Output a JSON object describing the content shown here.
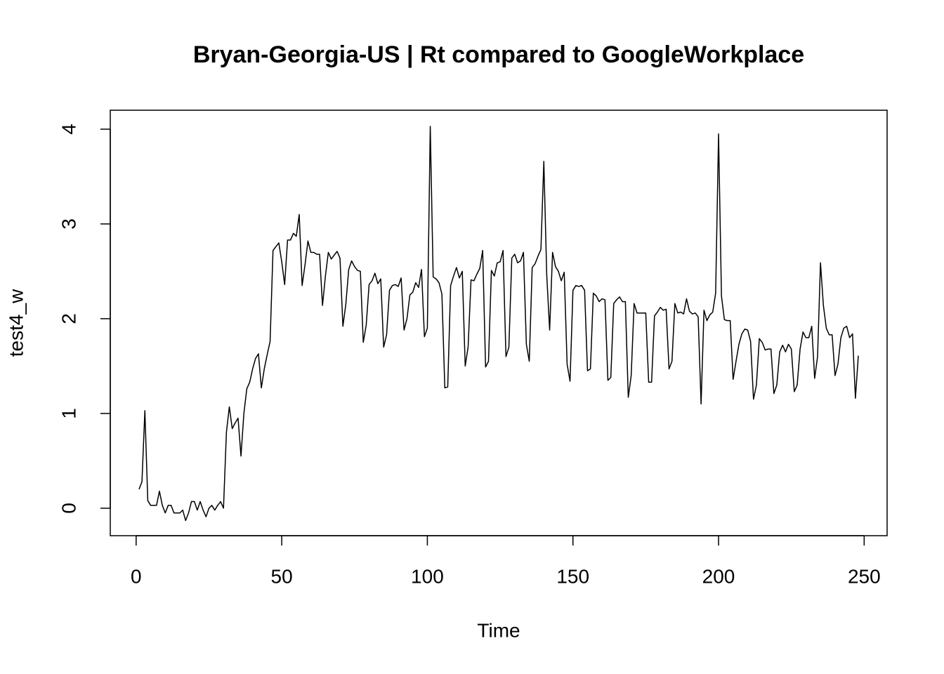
{
  "chart_data": {
    "type": "line",
    "title": "Bryan-Georgia-US | Rt compared to GoogleWorkplace",
    "xlabel": "Time",
    "ylabel": "test4_w",
    "x": [
      1,
      2,
      3,
      4,
      5,
      6,
      7,
      8,
      9,
      10,
      11,
      12,
      13,
      14,
      15,
      16,
      17,
      18,
      19,
      20,
      21,
      22,
      23,
      24,
      25,
      26,
      27,
      28,
      29,
      30,
      31,
      32,
      33,
      34,
      35,
      36,
      37,
      38,
      39,
      40,
      41,
      42,
      43,
      44,
      45,
      46,
      47,
      48,
      49,
      50,
      51,
      52,
      53,
      54,
      55,
      56,
      57,
      58,
      59,
      60,
      61,
      62,
      63,
      64,
      65,
      66,
      67,
      68,
      69,
      70,
      71,
      72,
      73,
      74,
      75,
      76,
      77,
      78,
      79,
      80,
      81,
      82,
      83,
      84,
      85,
      86,
      87,
      88,
      89,
      90,
      91,
      92,
      93,
      94,
      95,
      96,
      97,
      98,
      99,
      100,
      101,
      102,
      103,
      104,
      105,
      106,
      107,
      108,
      109,
      110,
      111,
      112,
      113,
      114,
      115,
      116,
      117,
      118,
      119,
      120,
      121,
      122,
      123,
      124,
      125,
      126,
      127,
      128,
      129,
      130,
      131,
      132,
      133,
      134,
      135,
      136,
      137,
      138,
      139,
      140,
      141,
      142,
      143,
      144,
      145,
      146,
      147,
      148,
      149,
      150,
      151,
      152,
      153,
      154,
      155,
      156,
      157,
      158,
      159,
      160,
      161,
      162,
      163,
      164,
      165,
      166,
      167,
      168,
      169,
      170,
      171,
      172,
      173,
      174,
      175,
      176,
      177,
      178,
      179,
      180,
      181,
      182,
      183,
      184,
      185,
      186,
      187,
      188,
      189,
      190,
      191,
      192,
      193,
      194,
      195,
      196,
      197,
      198,
      199,
      200,
      201,
      202,
      203,
      204,
      205,
      206,
      207,
      208,
      209,
      210,
      211,
      212,
      213,
      214,
      215,
      216,
      217,
      218,
      219,
      220,
      221,
      222,
      223,
      224,
      225,
      226,
      227,
      228,
      229,
      230,
      231,
      232,
      233,
      234,
      235,
      236,
      237,
      238,
      239,
      240,
      241,
      242,
      243,
      244,
      245,
      246,
      247,
      248
    ],
    "series": [
      {
        "name": "test4_w",
        "color": "#000000",
        "values": [
          0.2,
          0.28,
          1.03,
          0.08,
          0.03,
          0.03,
          0.03,
          0.18,
          0.03,
          -0.05,
          0.03,
          0.03,
          -0.05,
          -0.05,
          -0.05,
          -0.02,
          -0.13,
          -0.05,
          0.07,
          0.07,
          -0.02,
          0.07,
          -0.02,
          -0.09,
          0.0,
          0.03,
          -0.02,
          0.03,
          0.07,
          0.0,
          0.8,
          1.07,
          0.84,
          0.9,
          0.95,
          0.55,
          1.0,
          1.26,
          1.33,
          1.47,
          1.58,
          1.63,
          1.27,
          1.47,
          1.62,
          1.76,
          2.72,
          2.76,
          2.8,
          2.6,
          2.36,
          2.83,
          2.83,
          2.9,
          2.87,
          3.1,
          2.35,
          2.57,
          2.82,
          2.7,
          2.7,
          2.68,
          2.68,
          2.14,
          2.45,
          2.7,
          2.63,
          2.67,
          2.71,
          2.64,
          1.92,
          2.15,
          2.52,
          2.61,
          2.55,
          2.51,
          2.5,
          1.75,
          1.93,
          2.36,
          2.4,
          2.48,
          2.37,
          2.42,
          1.7,
          1.83,
          2.3,
          2.35,
          2.36,
          2.34,
          2.43,
          1.88,
          2.0,
          2.25,
          2.28,
          2.38,
          2.33,
          2.52,
          1.81,
          1.9,
          4.03,
          2.44,
          2.42,
          2.38,
          2.26,
          1.27,
          1.28,
          2.35,
          2.45,
          2.54,
          2.43,
          2.5,
          1.5,
          1.7,
          2.41,
          2.4,
          2.47,
          2.53,
          2.72,
          1.49,
          1.55,
          2.51,
          2.45,
          2.59,
          2.6,
          2.72,
          1.6,
          1.7,
          2.64,
          2.68,
          2.59,
          2.61,
          2.7,
          1.73,
          1.55,
          2.54,
          2.58,
          2.66,
          2.73,
          3.66,
          2.46,
          1.88,
          2.7,
          2.55,
          2.5,
          2.4,
          2.49,
          1.52,
          1.34,
          2.3,
          2.35,
          2.34,
          2.35,
          2.3,
          1.45,
          1.47,
          2.27,
          2.24,
          2.18,
          2.21,
          2.2,
          1.35,
          1.38,
          2.16,
          2.2,
          2.23,
          2.18,
          2.18,
          1.17,
          1.4,
          2.16,
          2.06,
          2.06,
          2.06,
          2.06,
          1.33,
          1.33,
          2.03,
          2.07,
          2.12,
          2.09,
          2.1,
          1.47,
          1.55,
          2.16,
          2.06,
          2.07,
          2.05,
          2.21,
          2.08,
          2.05,
          2.06,
          2.02,
          1.1,
          2.09,
          1.98,
          2.04,
          2.07,
          2.27,
          3.95,
          2.24,
          1.99,
          1.98,
          1.98,
          1.36,
          1.55,
          1.73,
          1.84,
          1.89,
          1.88,
          1.76,
          1.15,
          1.3,
          1.79,
          1.75,
          1.67,
          1.68,
          1.68,
          1.21,
          1.3,
          1.65,
          1.72,
          1.65,
          1.73,
          1.68,
          1.23,
          1.3,
          1.68,
          1.86,
          1.8,
          1.8,
          1.92,
          1.37,
          1.6,
          2.59,
          2.14,
          1.9,
          1.83,
          1.83,
          1.4,
          1.52,
          1.8,
          1.9,
          1.92,
          1.8,
          1.84,
          1.16,
          1.61
        ]
      }
    ],
    "xlim": [
      -8.88,
      257.88
    ],
    "xticks": [
      0,
      50,
      100,
      150,
      200,
      250
    ],
    "ylim": [
      -0.29,
      4.2
    ],
    "yticks": [
      0,
      1,
      2,
      3,
      4
    ]
  }
}
